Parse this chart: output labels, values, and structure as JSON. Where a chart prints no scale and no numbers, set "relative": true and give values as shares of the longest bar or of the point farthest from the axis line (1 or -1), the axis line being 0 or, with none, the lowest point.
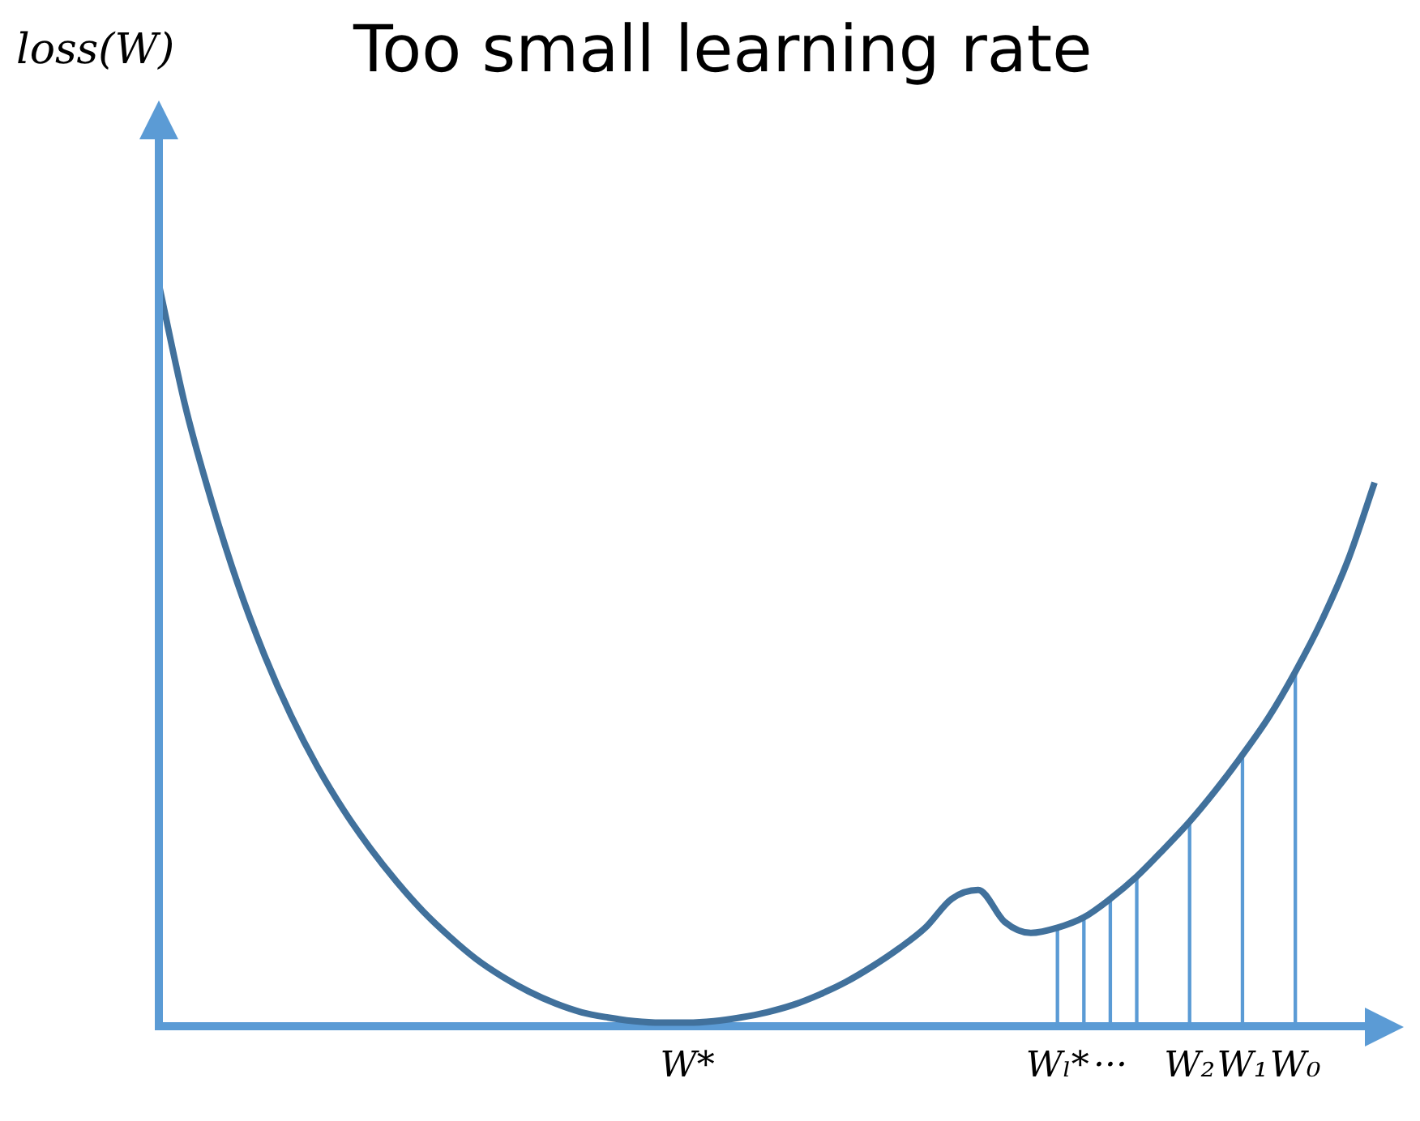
{
  "chart_data": {
    "type": "line",
    "title": "Too small learning rate",
    "ylabel": "loss(W)",
    "relative": true,
    "grid": false,
    "legend": false,
    "marker": "none",
    "categories": [
      null,
      null,
      null,
      null,
      null,
      null,
      null,
      null,
      null,
      null,
      null,
      null,
      null,
      null,
      null,
      null,
      null,
      null,
      null,
      null,
      "W*",
      null,
      null,
      null,
      null,
      null,
      null,
      null,
      null,
      null,
      null,
      null,
      null,
      null,
      "Wₗ*",
      null,
      "···",
      null,
      null,
      "W₂",
      null,
      "W₁",
      null,
      "W₀",
      null,
      null,
      null
    ],
    "series": [
      {
        "color": "#41719c",
        "values": [
          1,
          0.836,
          0.707,
          0.595,
          0.5,
          0.419,
          0.35,
          0.291,
          0.24,
          0.195,
          0.155,
          0.121,
          0.091,
          0.067,
          0.047,
          0.031,
          0.019,
          0.012,
          0.007,
          0.005,
          0.005,
          0.007,
          0.012,
          0.019,
          0.029,
          0.043,
          0.06,
          0.081,
          0.105,
          0.133,
          0.172,
          0.184,
          0.141,
          0.126,
          0.133,
          0.147,
          0.172,
          0.202,
          0.238,
          0.276,
          0.319,
          0.366,
          0.417,
          0.478,
          0.547,
          0.629,
          0.733
        ]
      },
      {
        "type": "bar",
        "color": "#5b9bd5",
        "values": [
          null,
          null,
          null,
          null,
          null,
          null,
          null,
          null,
          null,
          null,
          null,
          null,
          null,
          null,
          null,
          null,
          null,
          null,
          null,
          null,
          null,
          null,
          null,
          null,
          null,
          null,
          null,
          null,
          null,
          null,
          null,
          null,
          null,
          null,
          0.133,
          0.147,
          0.172,
          0.202,
          null,
          0.276,
          null,
          0.366,
          null,
          0.478,
          null,
          null,
          null
        ]
      }
    ]
  }
}
